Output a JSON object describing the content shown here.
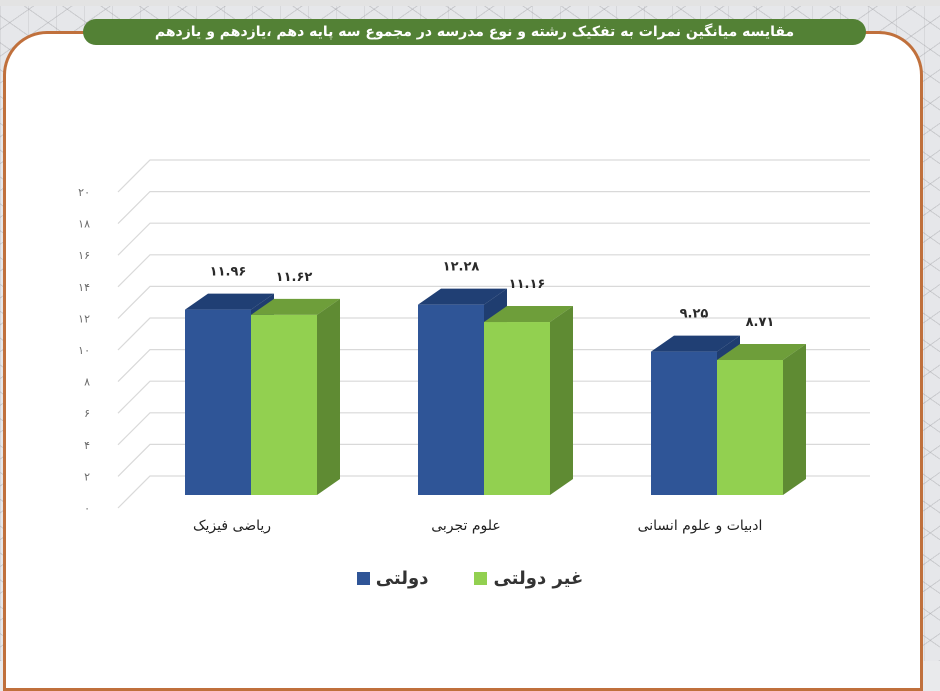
{
  "title": "مقایسه میانگین نمرات  به تفکیک رشته و نوع مدرسه در مجموع سه پایه دهم ،یازدهم و یازدهم",
  "colors": {
    "title_bar": "#538135",
    "frame_border": "#c0703c",
    "series_government": "#2f5597",
    "series_non_government": "#92d050"
  },
  "yaxis": {
    "ticks": [
      "۰",
      "۲",
      "۴",
      "۶",
      "۸",
      "۱۰",
      "۱۲",
      "۱۴",
      "۱۶",
      "۱۸",
      "۲۰"
    ]
  },
  "categories": [
    {
      "label": "ریاضی فیزیک",
      "values": {
        "government": "۱۱.۹۶",
        "non_government": "۱۱.۶۲"
      }
    },
    {
      "label": "علوم تجربی",
      "values": {
        "government": "۱۲.۲۸",
        "non_government": "۱۱.۱۶"
      }
    },
    {
      "label": "ادبیات و علوم انسانی",
      "values": {
        "government": "۹.۲۵",
        "non_government": "۸.۷۱"
      }
    }
  ],
  "legend": {
    "government": "دولتی",
    "non_government": "غیر دولتی"
  },
  "chart_data": {
    "type": "bar",
    "title": "مقایسه میانگین نمرات  به تفکیک رشته و نوع مدرسه در مجموع سه پایه دهم ،یازدهم و یازدهم",
    "categories": [
      "ریاضی فیزیک",
      "علوم تجربی",
      "ادبیات و علوم انسانی"
    ],
    "series": [
      {
        "name": "دولتی",
        "values": [
          11.96,
          12.28,
          9.25
        ],
        "color": "#2f5597"
      },
      {
        "name": "غیر دولتی",
        "values": [
          11.62,
          11.16,
          8.71
        ],
        "color": "#92d050"
      }
    ],
    "xlabel": "",
    "ylabel": "",
    "ylim": [
      0,
      20
    ],
    "yticks": [
      0,
      2,
      4,
      6,
      8,
      10,
      12,
      14,
      16,
      18,
      20
    ],
    "grid": true,
    "style": "3d-clustered-column",
    "legend_position": "bottom"
  }
}
